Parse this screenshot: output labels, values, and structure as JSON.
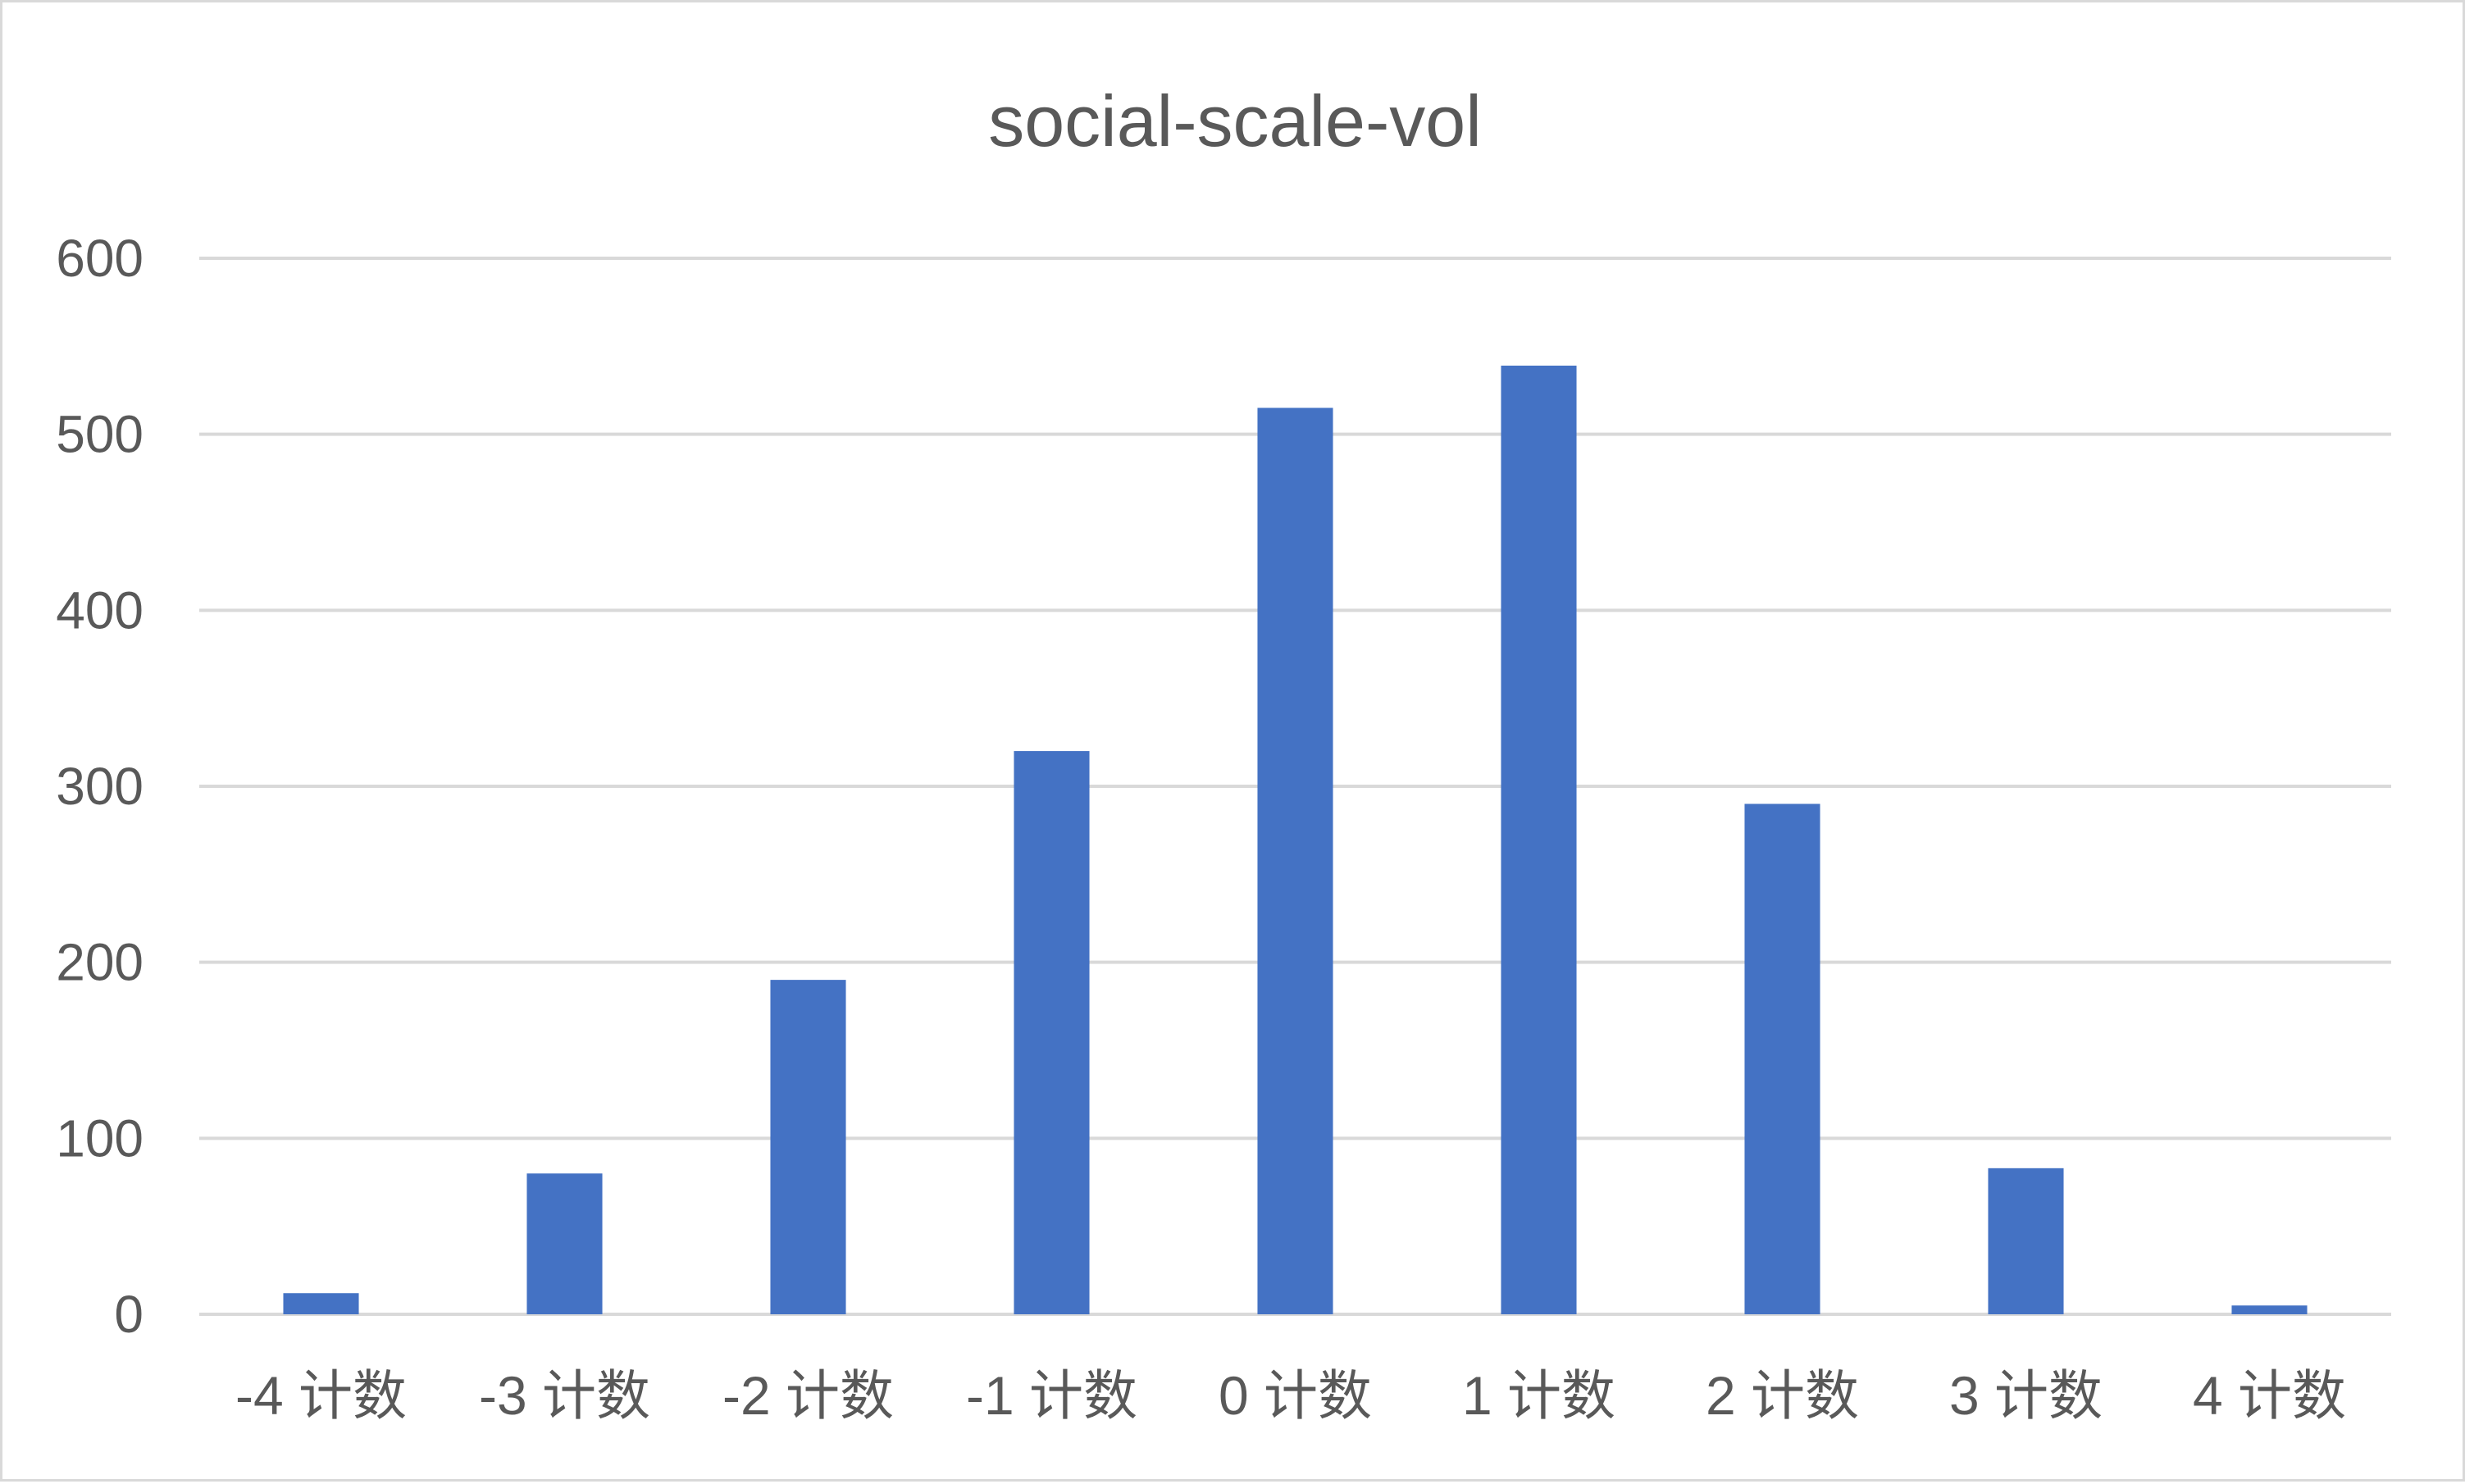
{
  "chart_data": {
    "type": "bar",
    "title": "social-scale-vol",
    "xlabel": "",
    "ylabel": "",
    "categories": [
      "-4 计数",
      "-3 计数",
      "-2 计数",
      "-1 计数",
      "0 计数",
      "1 计数",
      "2 计数",
      "3 计数",
      "4 计数"
    ],
    "series": [
      {
        "values": [
          12,
          80,
          190,
          320,
          515,
          539,
          290,
          83,
          5
        ],
        "color": "#4472c4"
      }
    ],
    "ylim": [
      0,
      600
    ],
    "yticks": [
      0,
      100,
      200,
      300,
      400,
      500,
      600
    ],
    "grid": true,
    "legend": "none"
  }
}
